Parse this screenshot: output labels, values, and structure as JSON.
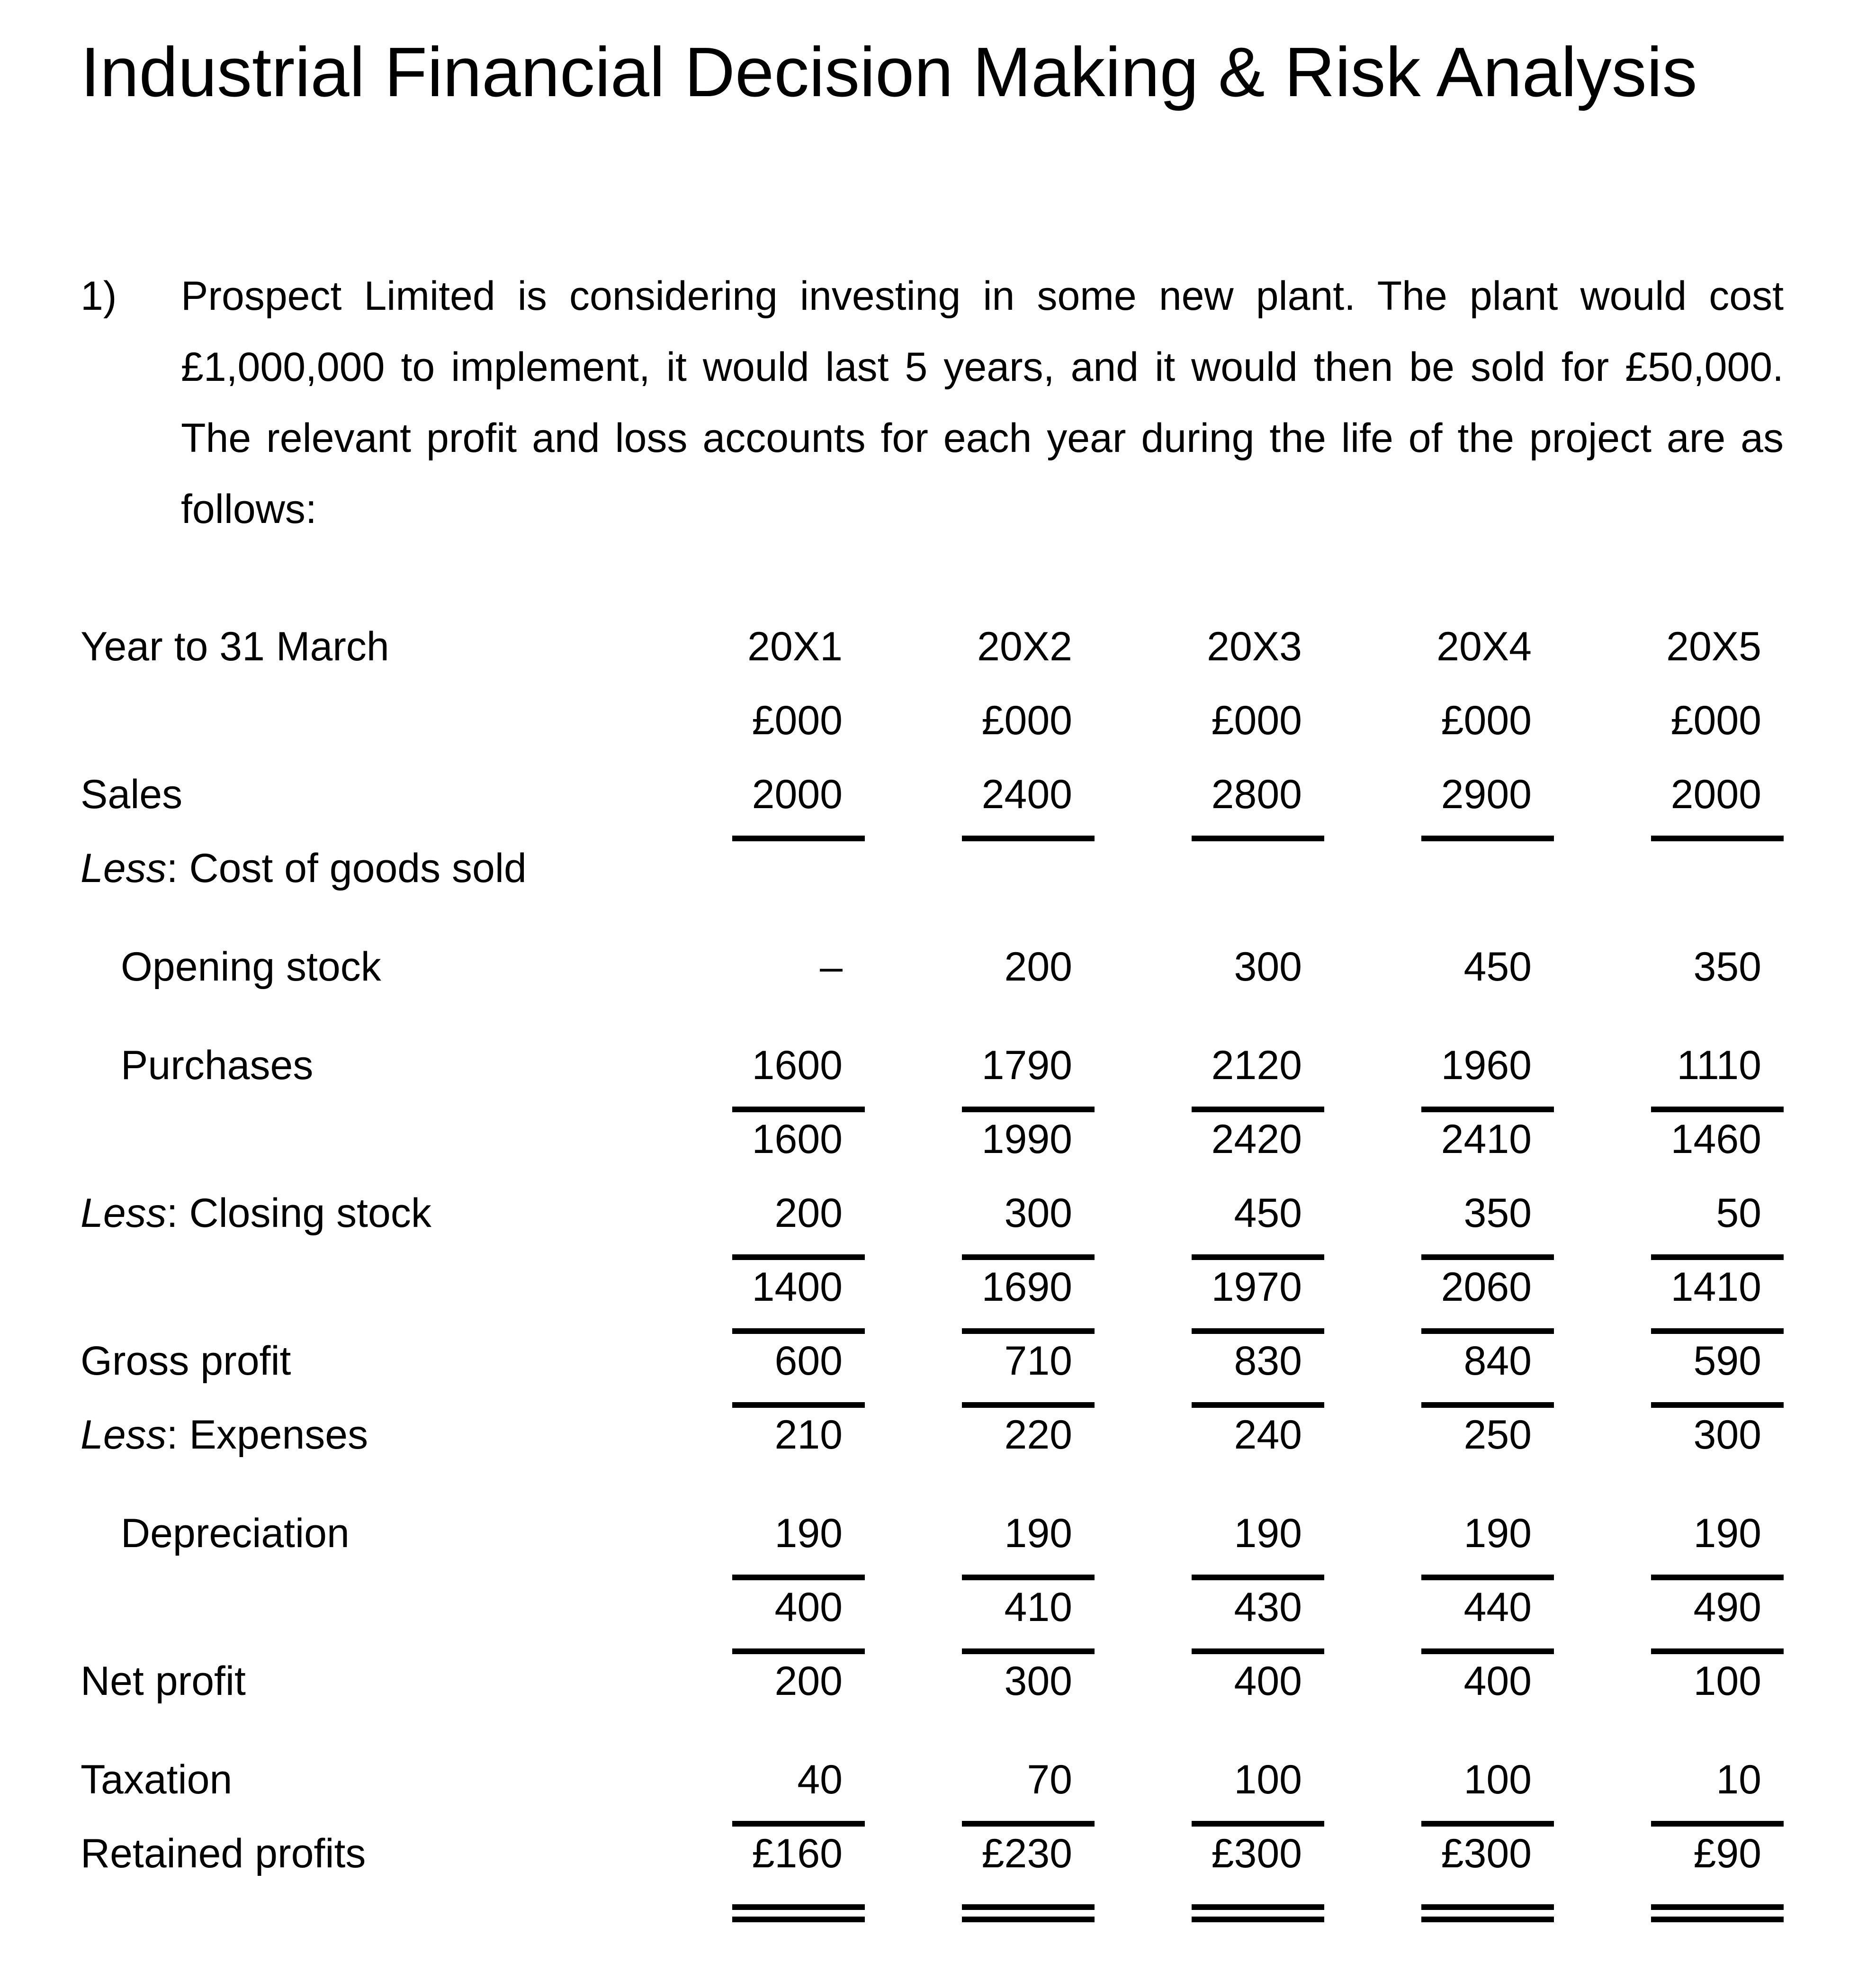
{
  "title": "Industrial Financial Decision Making & Risk Analysis",
  "problem": {
    "number": "1)",
    "lines": [
      "Prospect Limited is considering investing in some new plant. The plant would cost",
      "£1,000,000 to implement, it would last 5 years, and it would then be sold for £50,000.",
      "The relevant profit and loss accounts for each year during the life of the project are as",
      "follows:"
    ]
  },
  "table": {
    "header_label": "Year to 31 March",
    "years": [
      "20X1",
      "20X2",
      "20X3",
      "20X4",
      "20X5"
    ],
    "units": [
      "£000",
      "£000",
      "£000",
      "£000",
      "£000"
    ],
    "rows": [
      {
        "em": "",
        "label": "Sales",
        "values": [
          "2000",
          "2400",
          "2800",
          "2900",
          "2000"
        ]
      },
      {
        "em": "Less",
        "label": ": Cost of goods sold",
        "values": [
          "",
          "",
          "",
          "",
          ""
        ]
      },
      {
        "em": "",
        "label": "Opening stock",
        "values": [
          "–",
          "200",
          "300",
          "450",
          "350"
        ]
      },
      {
        "em": "",
        "label": "Purchases",
        "values": [
          "1600",
          "1790",
          "2120",
          "1960",
          "1110"
        ]
      },
      {
        "em": "",
        "label": "",
        "values": [
          "1600",
          "1990",
          "2420",
          "2410",
          "1460"
        ]
      },
      {
        "em": "Less",
        "label": ": Closing stock",
        "values": [
          "200",
          "300",
          "450",
          "350",
          "50"
        ]
      },
      {
        "em": "",
        "label": "",
        "values": [
          "1400",
          "1690",
          "1970",
          "2060",
          "1410"
        ]
      },
      {
        "em": "",
        "label": "Gross profit",
        "values": [
          "600",
          "710",
          "830",
          "840",
          "590"
        ]
      },
      {
        "em": "Less",
        "label": ": Expenses",
        "values": [
          "210",
          "220",
          "240",
          "250",
          "300"
        ]
      },
      {
        "em": "",
        "label": "Depreciation",
        "values": [
          "190",
          "190",
          "190",
          "190",
          "190"
        ]
      },
      {
        "em": "",
        "label": "",
        "values": [
          "400",
          "410",
          "430",
          "440",
          "490"
        ]
      },
      {
        "em": "",
        "label": "Net profit",
        "values": [
          "200",
          "300",
          "400",
          "400",
          "100"
        ]
      },
      {
        "em": "",
        "label": "Taxation",
        "values": [
          "40",
          "70",
          "100",
          "100",
          "10"
        ]
      },
      {
        "em": "",
        "label": "Retained profits",
        "values": [
          "£160",
          "£230",
          "£300",
          "£300",
          "£90"
        ]
      }
    ]
  }
}
